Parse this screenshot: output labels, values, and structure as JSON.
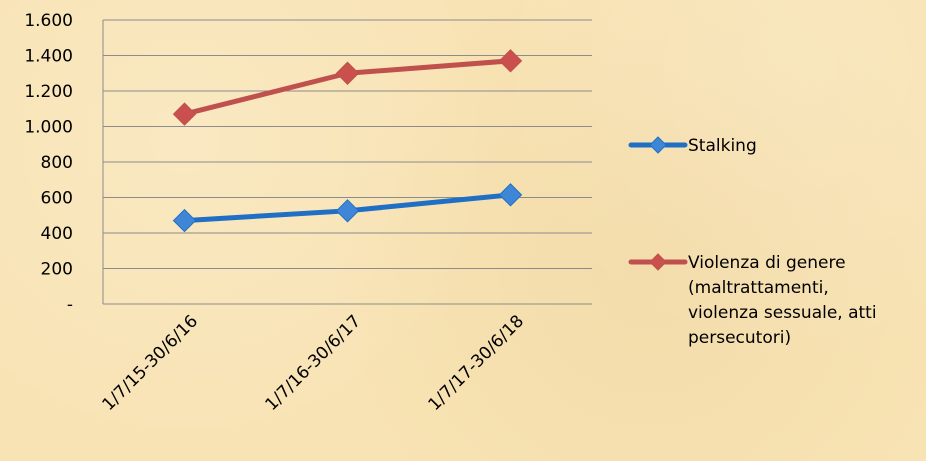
{
  "chart_data": {
    "type": "line",
    "title": "",
    "xlabel": "",
    "ylabel": "",
    "categories": [
      "1/7/15-30/6/16",
      "1/7/16-30/6/17",
      "1/7/17-30/6/18"
    ],
    "y_ticks": [
      "-",
      "200",
      "400",
      "600",
      "800",
      "1.000",
      "1.200",
      "1.400",
      "1.600"
    ],
    "y_tick_values": [
      0,
      200,
      400,
      600,
      800,
      1000,
      1200,
      1400,
      1600
    ],
    "ylim": [
      0,
      1600
    ],
    "grid": true,
    "legend_position": "right",
    "series": [
      {
        "name": "Stalking",
        "name_lines": [
          "Stalking"
        ],
        "values": [
          470,
          525,
          615
        ],
        "color": "#1f6fc5",
        "marker": "diamond",
        "marker_color": "#3f86d6"
      },
      {
        "name": "Violenza di genere (maltrattamenti, violenza sessuale, atti persecutori)",
        "name_lines": [
          "Violenza di genere",
          "(maltrattamenti,",
          "violenza sessuale, atti",
          "persecutori)"
        ],
        "values": [
          1070,
          1300,
          1370
        ],
        "color": "#c0504d",
        "marker": "diamond",
        "marker_color": "#c9504c"
      }
    ]
  }
}
